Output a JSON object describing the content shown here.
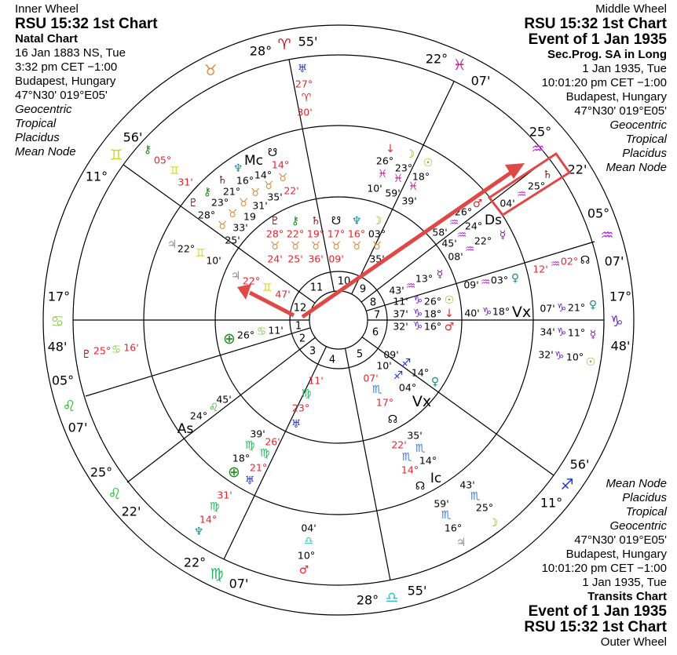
{
  "inner_wheel": {
    "wheel_label": "Inner Wheel",
    "title": "RSU 15:32 1st Chart",
    "chart_type": "Natal Chart",
    "date": "16 Jan 1883 NS, Tue",
    "time": "3:32 pm  CET −1:00",
    "place": "Budapest, Hungary",
    "coords": "47°N30' 019°E05'",
    "zodiac_view": "Geocentric",
    "zodiac": "Tropical",
    "houses": "Placidus",
    "node": "Mean Node"
  },
  "middle_wheel": {
    "wheel_label": "Middle Wheel",
    "title": "RSU 15:32 1st Chart",
    "event": "Event of 1 Jan 1935",
    "chart_type": "Sec.Prog. SA in Long",
    "date": "1 Jan 1935, Tue",
    "time": "10:01:20 pm  CET −1:00",
    "place": "Budapest, Hungary",
    "coords": "47°N30' 019°E05'",
    "zodiac_view": "Geocentric",
    "zodiac": "Tropical",
    "houses": "Placidus",
    "node": "Mean Node"
  },
  "outer_wheel": {
    "node": "Mean Node",
    "houses": "Placidus",
    "zodiac": "Tropical",
    "zodiac_view": "Geocentric",
    "coords": "47°N30' 019°E05'",
    "place": "Budapest, Hungary",
    "time": "10:01:20 pm  CET −1:00",
    "date": "1 Jan 1935, Tue",
    "chart_type": "Transits Chart",
    "event": "Event of 1 Jan 1935",
    "title": "RSU 15:32 1st Chart",
    "wheel_label": "Outer Wheel"
  },
  "colors": {
    "black": "#000000",
    "red": "#e8232b",
    "darkred": "#8b1a1a",
    "aries": "#c8141e",
    "taurus": "#d98b3a",
    "gemini": "#d4d41e",
    "cancer": "#8cd04a",
    "leo": "#2ab52a",
    "virgo": "#22b860",
    "libra": "#32c0c8",
    "scorpio": "#3a7ad0",
    "sagittarius": "#1a2ec8",
    "capricorn": "#6a28d0",
    "aquarius": "#b428d0",
    "pisces": "#c82890",
    "olive": "#a0a020",
    "purple": "#8a1a9a",
    "teal": "#1a8a8a",
    "blue": "#1a2ec8",
    "gray": "#8a8a8a",
    "green": "#1a8a1a",
    "arrow": "#e04848"
  },
  "houses": [
    "1",
    "2",
    "3",
    "4",
    "5",
    "6",
    "7",
    "8",
    "9",
    "10",
    "11",
    "12"
  ],
  "labels": [
    [
      "28°",
      "black"
    ],
    [
      "♈",
      "aries"
    ],
    [
      "55'",
      "black"
    ],
    [
      "22°",
      "black"
    ],
    [
      "♓",
      "pisces"
    ],
    [
      "07'",
      "black"
    ],
    [
      "25°",
      "black"
    ],
    [
      "♒",
      "aquarius"
    ],
    [
      "22'",
      "black"
    ],
    [
      "05°",
      "black"
    ],
    [
      "♒",
      "aquarius"
    ],
    [
      "07'",
      "black"
    ],
    [
      "17°",
      "black"
    ],
    [
      "♑",
      "capricorn"
    ],
    [
      "48'",
      "black"
    ],
    [
      "56'",
      "black"
    ],
    [
      "♐",
      "sagittarius"
    ],
    [
      "11°",
      "black"
    ],
    [
      "28°",
      "black"
    ],
    [
      "♎",
      "libra"
    ],
    [
      "55'",
      "black"
    ],
    [
      "22°",
      "black"
    ],
    [
      "♍",
      "virgo"
    ],
    [
      "07'",
      "black"
    ],
    [
      "25°",
      "black"
    ],
    [
      "♌",
      "leo"
    ],
    [
      "22'",
      "black"
    ],
    [
      "05°",
      "black"
    ],
    [
      "♌",
      "leo"
    ],
    [
      "07'",
      "black"
    ],
    [
      "17°",
      "black"
    ],
    [
      "♋",
      "cancer"
    ],
    [
      "48'",
      "black"
    ],
    [
      "11°",
      "black"
    ],
    [
      "♊",
      "gemini"
    ],
    [
      "56'",
      "black"
    ],
    [
      "♉",
      "taurus"
    ],
    [
      "♅",
      "blue"
    ],
    [
      "27°",
      "red"
    ],
    [
      "♈",
      "red"
    ],
    [
      "30'",
      "red"
    ],
    [
      "⚷",
      "green"
    ],
    [
      "05°",
      "red"
    ],
    [
      "♊",
      "gemini"
    ],
    [
      "31'",
      "red"
    ],
    [
      "♃",
      "gray"
    ],
    [
      "22°",
      "black"
    ],
    [
      "♊",
      "gemini"
    ],
    [
      "10'",
      "black"
    ],
    [
      "♇",
      "darkred"
    ],
    [
      "25°",
      "red"
    ],
    [
      "♋",
      "cancer"
    ],
    [
      "16'",
      "red"
    ],
    [
      "↓",
      "red"
    ],
    [
      "☽",
      "olive"
    ],
    [
      "☉",
      "olive"
    ],
    [
      "26°",
      "black"
    ],
    [
      "23°",
      "black"
    ],
    [
      "18°",
      "black"
    ],
    [
      "♓",
      "pisces"
    ],
    [
      "♓",
      "pisces"
    ],
    [
      "♓",
      "pisces"
    ],
    [
      "10'",
      "black"
    ],
    [
      "59'",
      "black"
    ],
    [
      "39'",
      "black"
    ],
    [
      "♄",
      "darkred"
    ],
    [
      "25°",
      "black"
    ],
    [
      "♒",
      "aquarius"
    ],
    [
      "04'",
      "black"
    ],
    [
      "12'",
      "red"
    ],
    [
      "♒",
      "aquarius"
    ],
    [
      "02°",
      "red"
    ],
    [
      "☊",
      "black"
    ],
    [
      "07'",
      "black"
    ],
    [
      "♑",
      "capricorn"
    ],
    [
      "21°",
      "black"
    ],
    [
      "♀",
      "teal"
    ],
    [
      "34'",
      "black"
    ],
    [
      "♑",
      "capricorn"
    ],
    [
      "11°",
      "black"
    ],
    [
      "☿",
      "purple"
    ],
    [
      "32'",
      "black"
    ],
    [
      "♑",
      "capricorn"
    ],
    [
      "10°",
      "black"
    ],
    [
      "☉",
      "olive"
    ],
    [
      "43'",
      "black"
    ],
    [
      "♏",
      "scorpio"
    ],
    [
      "25°",
      "black"
    ],
    [
      "☽",
      "olive"
    ],
    [
      "59'",
      "black"
    ],
    [
      "♏",
      "scorpio"
    ],
    [
      "16°",
      "black"
    ],
    [
      "♃",
      "gray"
    ],
    [
      "04'",
      "black"
    ],
    [
      "♎",
      "libra"
    ],
    [
      "10°",
      "black"
    ],
    [
      "♂",
      "red"
    ],
    [
      "31'",
      "red"
    ],
    [
      "♍",
      "virgo"
    ],
    [
      "14°",
      "red"
    ],
    [
      "♆",
      "teal"
    ],
    [
      "Mc",
      "black"
    ],
    [
      "☋",
      "black"
    ],
    [
      "14°",
      "red"
    ],
    [
      "♆",
      "teal"
    ],
    [
      "14°",
      "black"
    ],
    [
      "16°",
      "black"
    ],
    [
      "♉",
      "taurus"
    ],
    [
      "♄",
      "darkred"
    ],
    [
      "♉",
      "taurus"
    ],
    [
      "22'",
      "red"
    ],
    [
      "21°",
      "black"
    ],
    [
      "♉",
      "taurus"
    ],
    [
      "35'",
      "black"
    ],
    [
      "⚷",
      "green"
    ],
    [
      "31'",
      "black"
    ],
    [
      "23°",
      "black"
    ],
    [
      "♉",
      "taurus"
    ],
    [
      "♇",
      "darkred"
    ],
    [
      "19",
      "black"
    ],
    [
      "28°",
      "black"
    ],
    [
      "♉",
      "taurus"
    ],
    [
      "33'",
      "black"
    ],
    [
      "♉",
      "taurus"
    ],
    [
      "25'",
      "black"
    ],
    [
      "♂",
      "red"
    ],
    [
      "26°",
      "black"
    ],
    [
      "♒",
      "aquarius"
    ],
    [
      "Ds",
      "black"
    ],
    [
      "24°",
      "black"
    ],
    [
      "58'",
      "black"
    ],
    [
      "♒",
      "aquarius"
    ],
    [
      "☿",
      "purple"
    ],
    [
      "22°",
      "black"
    ],
    [
      "45'",
      "black"
    ],
    [
      "♒",
      "aquarius"
    ],
    [
      "08'",
      "black"
    ],
    [
      "09'",
      "black"
    ],
    [
      "♒",
      "aquarius"
    ],
    [
      "03°",
      "black"
    ],
    [
      "♀",
      "teal"
    ],
    [
      "40'",
      "black"
    ],
    [
      "♑",
      "capricorn"
    ],
    [
      "18°",
      "black"
    ],
    [
      "Vx",
      "black"
    ],
    [
      "35'",
      "black"
    ],
    [
      "22'",
      "red"
    ],
    [
      "♏",
      "scorpio"
    ],
    [
      "♏",
      "scorpio"
    ],
    [
      "14°",
      "black"
    ],
    [
      "14°",
      "red"
    ],
    [
      "Ic",
      "black"
    ],
    [
      "☊",
      "black"
    ],
    [
      "39'",
      "black"
    ],
    [
      "26'",
      "red"
    ],
    [
      "♍",
      "virgo"
    ],
    [
      "♍",
      "virgo"
    ],
    [
      "18°",
      "black"
    ],
    [
      "21°",
      "red"
    ],
    [
      "⊕",
      "green"
    ],
    [
      "♅",
      "blue"
    ],
    [
      "45'",
      "black"
    ],
    [
      "♌",
      "leo"
    ],
    [
      "24°",
      "black"
    ],
    [
      "As",
      "black"
    ],
    [
      "☽",
      "olive"
    ],
    [
      "♆",
      "teal"
    ],
    [
      "☋",
      "black"
    ],
    [
      "03°",
      "black"
    ],
    [
      "♄",
      "darkred"
    ],
    [
      "16°",
      "red"
    ],
    [
      "17°",
      "red"
    ],
    [
      "19°",
      "red"
    ],
    [
      "⚷",
      "green"
    ],
    [
      "♉",
      "taurus"
    ],
    [
      "22°",
      "red"
    ],
    [
      "♇",
      "darkred"
    ],
    [
      "28°",
      "red"
    ],
    [
      "♉",
      "taurus"
    ],
    [
      "♉",
      "taurus"
    ],
    [
      "♉",
      "taurus"
    ],
    [
      "♉",
      "taurus"
    ],
    [
      "♉",
      "taurus"
    ],
    [
      "35'",
      "black"
    ],
    [
      "09'",
      "red"
    ],
    [
      "36'",
      "red"
    ],
    [
      "25'",
      "red"
    ],
    [
      "24'",
      "red"
    ],
    [
      "♃",
      "gray"
    ],
    [
      "22°",
      "red"
    ],
    [
      "♊",
      "gemini"
    ],
    [
      "47'",
      "red"
    ],
    [
      "43'",
      "black"
    ],
    [
      "♒",
      "aquarius"
    ],
    [
      "13°",
      "black"
    ],
    [
      "☿",
      "purple"
    ],
    [
      "11'",
      "black"
    ],
    [
      "♑",
      "capricorn"
    ],
    [
      "26°",
      "black"
    ],
    [
      "37'",
      "black"
    ],
    [
      "♑",
      "capricorn"
    ],
    [
      "18°",
      "black"
    ],
    [
      "32'",
      "black"
    ],
    [
      "♑",
      "capricorn"
    ],
    [
      "16°",
      "black"
    ],
    [
      "☉",
      "olive"
    ],
    [
      "↓",
      "red"
    ],
    [
      "♂",
      "red"
    ],
    [
      "⊕",
      "green"
    ],
    [
      "26°",
      "black"
    ],
    [
      "♋",
      "cancer"
    ],
    [
      "11'",
      "black"
    ],
    [
      "09'",
      "black"
    ],
    [
      "♐",
      "sagittarius"
    ],
    [
      "14°",
      "black"
    ],
    [
      "♀",
      "teal"
    ],
    [
      "10'",
      "black"
    ],
    [
      "♐",
      "sagittarius"
    ],
    [
      "04°",
      "black"
    ],
    [
      "07'",
      "red"
    ],
    [
      "♏",
      "scorpio"
    ],
    [
      "17°",
      "red"
    ],
    [
      "Vx",
      "black"
    ],
    [
      "☊",
      "black"
    ],
    [
      "11'",
      "red"
    ],
    [
      "♍",
      "virgo"
    ],
    [
      "23°",
      "red"
    ],
    [
      "♅",
      "blue"
    ]
  ]
}
